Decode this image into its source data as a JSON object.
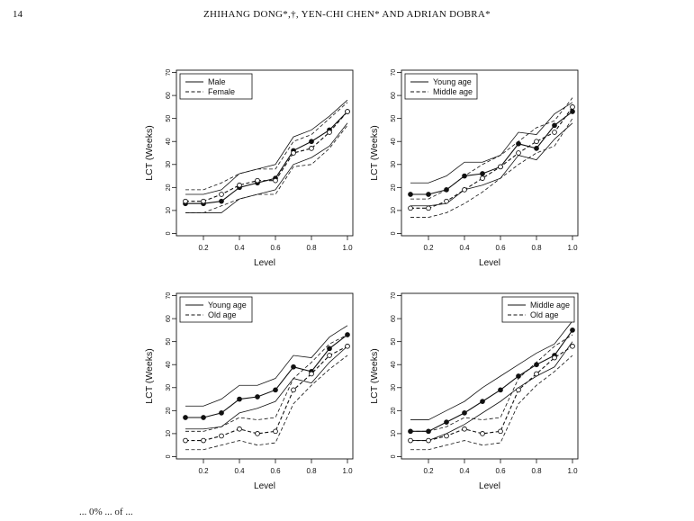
{
  "page": {
    "number": "14",
    "running_head": "ZHIHANG DONG*,†, YEN-CHI CHEN* AND ADRIAN DOBRA*",
    "caption_fragment": "... 0% ... of ... "
  },
  "chart_data": [
    {
      "type": "line",
      "title": "",
      "xlabel": "Level",
      "ylabel": "LCT (Weeks)",
      "xlim": [
        0.05,
        1.03
      ],
      "ylim": [
        -1,
        71
      ],
      "xticks": [
        0.2,
        0.4,
        0.6,
        0.8,
        1.0
      ],
      "xtick_labels": [
        "0.2",
        "0.4",
        "0.6",
        "0.8",
        "1.0"
      ],
      "yticks": [
        0,
        10,
        20,
        30,
        40,
        50,
        60,
        70
      ],
      "ytick_labels": [
        "0",
        "10",
        "20",
        "30",
        "40",
        "50",
        "60",
        "70"
      ],
      "legend": {
        "placement": "top-left",
        "entries": [
          {
            "label": "Male",
            "style": "solid"
          },
          {
            "label": "Female",
            "style": "dashed"
          }
        ]
      },
      "x": [
        0.1,
        0.2,
        0.3,
        0.4,
        0.5,
        0.6,
        0.7,
        0.8,
        0.9,
        1.0
      ],
      "series": [
        {
          "name": "Male",
          "style": "solid",
          "marker": "filled",
          "center": [
            13,
            13,
            14,
            20,
            22,
            24,
            36,
            40,
            45,
            53
          ],
          "lower": [
            9,
            9,
            9,
            15,
            17,
            19,
            30,
            33,
            38,
            48
          ],
          "upper": [
            17,
            17,
            19,
            26,
            28,
            30,
            42,
            45,
            51,
            58
          ]
        },
        {
          "name": "Female",
          "style": "dashed",
          "marker": "open",
          "center": [
            14,
            14,
            17,
            21,
            23,
            23,
            35,
            37,
            44,
            53
          ],
          "lower": [
            9,
            9,
            12,
            15,
            17,
            17,
            29,
            30,
            37,
            47
          ],
          "upper": [
            19,
            19,
            22,
            26,
            28,
            28,
            40,
            43,
            50,
            57
          ]
        }
      ]
    },
    {
      "type": "line",
      "title": "",
      "xlabel": "Level",
      "ylabel": "LCT (Weeks)",
      "xlim": [
        0.05,
        1.03
      ],
      "ylim": [
        -1,
        71
      ],
      "xticks": [
        0.2,
        0.4,
        0.6,
        0.8,
        1.0
      ],
      "xtick_labels": [
        "0.2",
        "0.4",
        "0.6",
        "0.8",
        "1.0"
      ],
      "yticks": [
        0,
        10,
        20,
        30,
        40,
        50,
        60,
        70
      ],
      "ytick_labels": [
        "0",
        "10",
        "20",
        "30",
        "40",
        "50",
        "60",
        "70"
      ],
      "legend": {
        "placement": "top-left",
        "entries": [
          {
            "label": "Young age",
            "style": "solid"
          },
          {
            "label": "Middle age",
            "style": "dashed"
          }
        ]
      },
      "x": [
        0.1,
        0.2,
        0.3,
        0.4,
        0.5,
        0.6,
        0.7,
        0.8,
        0.9,
        1.0
      ],
      "series": [
        {
          "name": "Young age",
          "style": "solid",
          "marker": "filled",
          "center": [
            17,
            17,
            19,
            25,
            26,
            29,
            39,
            37,
            47,
            53
          ],
          "lower": [
            12,
            12,
            13,
            19,
            21,
            24,
            34,
            32,
            41,
            48
          ],
          "upper": [
            22,
            22,
            25,
            31,
            31,
            34,
            44,
            43,
            52,
            57
          ]
        },
        {
          "name": "Middle age",
          "style": "dashed",
          "marker": "open",
          "center": [
            11,
            11,
            14,
            19,
            24,
            29,
            35,
            40,
            44,
            55
          ],
          "lower": [
            7,
            7,
            9,
            13,
            18,
            24,
            30,
            35,
            38,
            50
          ],
          "upper": [
            15,
            15,
            19,
            25,
            30,
            34,
            40,
            46,
            49,
            59
          ]
        }
      ]
    },
    {
      "type": "line",
      "title": "",
      "xlabel": "Level",
      "ylabel": "LCT (Weeks)",
      "xlim": [
        0.05,
        1.03
      ],
      "ylim": [
        -1,
        71
      ],
      "xticks": [
        0.2,
        0.4,
        0.6,
        0.8,
        1.0
      ],
      "xtick_labels": [
        "0.2",
        "0.4",
        "0.6",
        "0.8",
        "1.0"
      ],
      "yticks": [
        0,
        10,
        20,
        30,
        40,
        50,
        60,
        70
      ],
      "ytick_labels": [
        "0",
        "10",
        "20",
        "30",
        "40",
        "50",
        "60",
        "70"
      ],
      "legend": {
        "placement": "top-left",
        "entries": [
          {
            "label": "Young age",
            "style": "solid"
          },
          {
            "label": "Old age",
            "style": "dashed"
          }
        ]
      },
      "x": [
        0.1,
        0.2,
        0.3,
        0.4,
        0.5,
        0.6,
        0.7,
        0.8,
        0.9,
        1.0
      ],
      "series": [
        {
          "name": "Young age",
          "style": "solid",
          "marker": "filled",
          "center": [
            17,
            17,
            19,
            25,
            26,
            29,
            39,
            37,
            47,
            53
          ],
          "lower": [
            12,
            12,
            13,
            19,
            21,
            24,
            34,
            32,
            41,
            48
          ],
          "upper": [
            22,
            22,
            25,
            31,
            31,
            34,
            44,
            43,
            52,
            57
          ]
        },
        {
          "name": "Old age",
          "style": "dashed",
          "marker": "open",
          "center": [
            7,
            7,
            9,
            12,
            10,
            11,
            29,
            36,
            44,
            48
          ],
          "lower": [
            3,
            3,
            5,
            7,
            5,
            6,
            23,
            31,
            38,
            44
          ],
          "upper": [
            11,
            11,
            13,
            17,
            16,
            17,
            34,
            41,
            49,
            53
          ]
        }
      ]
    },
    {
      "type": "line",
      "title": "",
      "xlabel": "Level",
      "ylabel": "LCT (Weeks)",
      "xlim": [
        0.05,
        1.03
      ],
      "ylim": [
        -1,
        71
      ],
      "xticks": [
        0.2,
        0.4,
        0.6,
        0.8,
        1.0
      ],
      "xtick_labels": [
        "0.2",
        "0.4",
        "0.6",
        "0.8",
        "1.0"
      ],
      "yticks": [
        0,
        10,
        20,
        30,
        40,
        50,
        60,
        70
      ],
      "ytick_labels": [
        "0",
        "10",
        "20",
        "30",
        "40",
        "50",
        "60",
        "70"
      ],
      "legend": {
        "placement": "top-right",
        "entries": [
          {
            "label": "Middle age",
            "style": "solid"
          },
          {
            "label": "Old age",
            "style": "dashed"
          }
        ]
      },
      "x": [
        0.1,
        0.2,
        0.3,
        0.4,
        0.5,
        0.6,
        0.7,
        0.8,
        0.9,
        1.0
      ],
      "series": [
        {
          "name": "Middle age",
          "style": "solid",
          "marker": "filled",
          "center": [
            11,
            11,
            15,
            19,
            24,
            29,
            35,
            40,
            44,
            55
          ],
          "lower": [
            7,
            7,
            10,
            14,
            19,
            24,
            30,
            35,
            39,
            50
          ],
          "upper": [
            16,
            16,
            20,
            24,
            30,
            35,
            40,
            45,
            49,
            59
          ]
        },
        {
          "name": "Old age",
          "style": "dashed",
          "marker": "open",
          "center": [
            7,
            7,
            9,
            12,
            10,
            11,
            29,
            36,
            43,
            48
          ],
          "lower": [
            3,
            3,
            5,
            7,
            5,
            6,
            23,
            31,
            37,
            44
          ],
          "upper": [
            11,
            11,
            13,
            17,
            16,
            17,
            34,
            41,
            48,
            53
          ]
        }
      ]
    }
  ]
}
